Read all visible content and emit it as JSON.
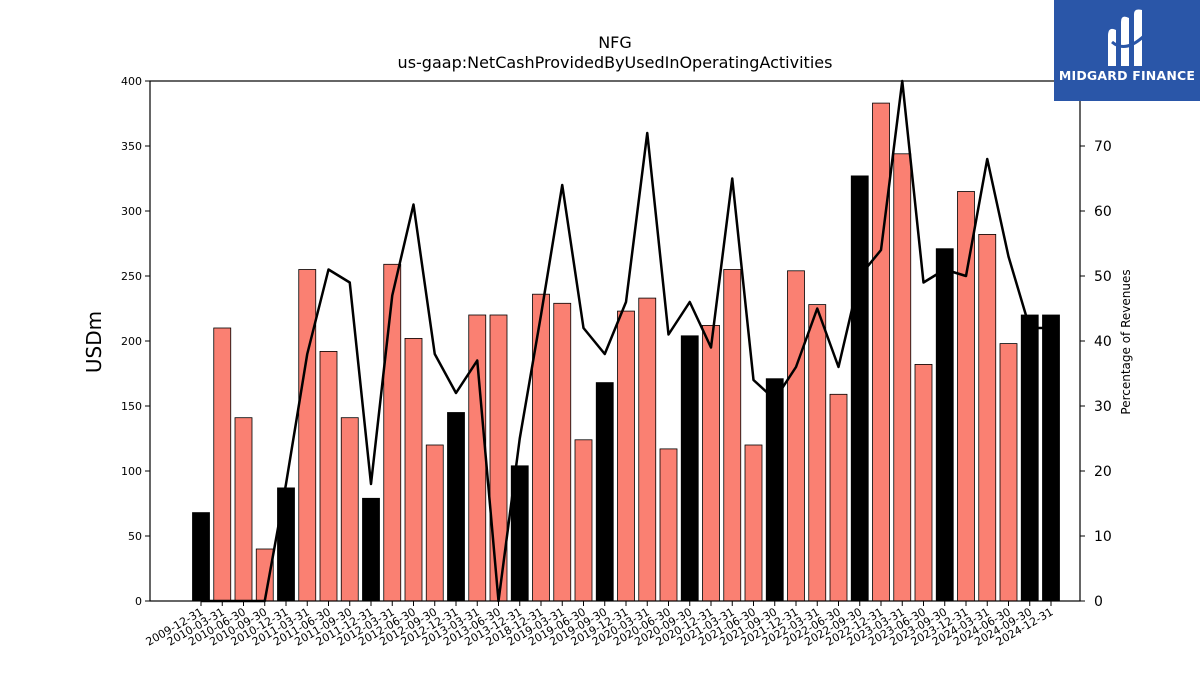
{
  "chart_data": {
    "type": "bar",
    "title": "NFG",
    "subtitle": "us-gaap:NetCashProvidedByUsedInOperatingActivities",
    "ylabel": "USDm",
    "y2label": "Percentage of Revenues",
    "ylim": [
      0,
      400
    ],
    "y2lim": [
      0,
      80
    ],
    "yticks": [
      0,
      50,
      100,
      150,
      200,
      250,
      300,
      350,
      400
    ],
    "y2ticks": [
      0,
      10,
      20,
      30,
      40,
      50,
      60,
      70,
      80
    ],
    "categories": [
      "2009-12-31",
      "2010-03-31",
      "2010-06-30",
      "2010-09-30",
      "2010-12-31",
      "2011-03-31",
      "2011-06-30",
      "2011-09-30",
      "2011-12-31",
      "2012-03-31",
      "2012-06-30",
      "2012-09-30",
      "2012-12-31",
      "2013-03-31",
      "2013-06-30",
      "2013-12-31",
      "2018-12-31",
      "2019-03-31",
      "2019-06-30",
      "2019-09-30",
      "2019-12-31",
      "2020-03-31",
      "2020-06-30",
      "2020-09-30",
      "2020-12-31",
      "2021-03-31",
      "2021-06-30",
      "2021-09-30",
      "2021-12-31",
      "2022-03-31",
      "2022-06-30",
      "2022-09-30",
      "2022-12-31",
      "2023-03-31",
      "2023-06-30",
      "2023-09-30",
      "2023-12-31",
      "2024-03-31",
      "2024-06-30",
      "2024-09-30",
      "2024-12-31"
    ],
    "series": [
      {
        "values": [
          68,
          210,
          141,
          40,
          87,
          255,
          192,
          141,
          79,
          259,
          202,
          120,
          145,
          220,
          220,
          104,
          236,
          229,
          124,
          168,
          223,
          233,
          117,
          204,
          212,
          255,
          120,
          171,
          254,
          228,
          159,
          327,
          383,
          344,
          182,
          271,
          315,
          282,
          198,
          220,
          220
        ],
        "highlight": [
          true,
          false,
          false,
          false,
          true,
          false,
          false,
          false,
          true,
          false,
          false,
          false,
          true,
          false,
          false,
          true,
          false,
          false,
          false,
          true,
          false,
          false,
          false,
          true,
          false,
          false,
          false,
          true,
          false,
          false,
          false,
          true,
          false,
          false,
          false,
          true,
          false,
          false,
          false,
          true,
          true
        ]
      },
      {
        "axis": "right",
        "type": "line",
        "values": [
          0,
          0,
          0,
          0,
          18,
          38,
          51,
          49,
          18,
          47,
          61,
          38,
          32,
          37,
          0,
          25,
          44,
          64,
          42,
          38,
          46,
          72,
          41,
          46,
          39,
          65,
          34,
          31,
          36,
          45,
          36,
          50,
          54,
          80,
          49,
          51,
          50,
          68,
          53,
          42,
          42
        ]
      }
    ],
    "colors": {
      "bar": "#fa8072",
      "highlight_bar": "#000000",
      "line": "#000000"
    }
  },
  "logo": {
    "text": "MIDGARD FINANCE",
    "color": "#2a56a8"
  }
}
